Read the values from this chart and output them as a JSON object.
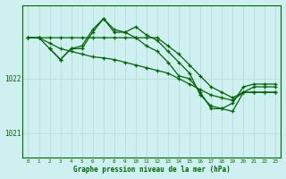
{
  "title": "Graphe pression niveau de la mer (hPa)",
  "bg_color": "#cff0f0",
  "grid_color_v": "#b8ddd8",
  "grid_color_h": "#b8ddd8",
  "line_color": "#006600",
  "xlim": [
    -0.5,
    23.5
  ],
  "ylim": [
    1020.55,
    1023.35
  ],
  "yticks": [
    1021,
    1022
  ],
  "xticks": [
    0,
    1,
    2,
    3,
    4,
    5,
    6,
    7,
    8,
    9,
    10,
    11,
    12,
    13,
    14,
    15,
    16,
    17,
    18,
    19,
    20,
    21,
    22,
    23
  ],
  "series": [
    {
      "x": [
        0,
        1,
        2,
        3,
        4,
        5,
        6,
        7,
        8,
        9,
        10,
        11,
        12,
        13,
        14,
        15,
        16,
        17,
        18,
        19,
        20,
        21,
        22,
        23
      ],
      "y": [
        1022.75,
        1022.75,
        1022.75,
        1022.75,
        1022.75,
        1022.75,
        1022.75,
        1022.75,
        1022.75,
        1022.75,
        1022.75,
        1022.75,
        1022.75,
        1022.6,
        1022.45,
        1022.25,
        1022.05,
        1021.85,
        1021.75,
        1021.65,
        1021.75,
        1021.75,
        1021.75,
        1021.75
      ]
    },
    {
      "x": [
        0,
        1,
        2,
        3,
        4,
        5,
        6,
        7,
        8,
        9,
        10,
        11,
        12,
        13,
        14,
        15,
        16,
        17,
        18,
        19,
        20,
        21,
        22,
        23
      ],
      "y": [
        1022.75,
        1022.75,
        1022.65,
        1022.55,
        1022.5,
        1022.45,
        1022.4,
        1022.38,
        1022.35,
        1022.3,
        1022.25,
        1022.2,
        1022.15,
        1022.1,
        1022.0,
        1021.9,
        1021.8,
        1021.7,
        1021.65,
        1021.6,
        1021.75,
        1021.75,
        1021.75,
        1021.75
      ]
    },
    {
      "x": [
        2,
        3,
        4,
        5,
        6,
        7,
        8,
        9,
        10,
        11,
        12,
        13,
        14,
        15,
        16,
        17,
        18,
        19,
        20,
        21,
        22,
        23
      ],
      "y": [
        1022.55,
        1022.35,
        1022.55,
        1022.55,
        1022.85,
        1023.1,
        1022.85,
        1022.85,
        1022.75,
        1022.6,
        1022.5,
        1022.3,
        1022.05,
        1022.0,
        1021.75,
        1021.45,
        1021.45,
        1021.4,
        1021.75,
        1021.85,
        1021.85,
        1021.85
      ]
    },
    {
      "x": [
        0,
        1,
        2,
        3,
        4,
        5,
        6,
        7,
        8,
        9,
        10,
        11,
        12,
        13,
        14,
        15,
        16,
        17,
        18,
        19,
        20,
        21,
        22,
        23
      ],
      "y": [
        1022.75,
        1022.75,
        1022.55,
        1022.35,
        1022.55,
        1022.6,
        1022.9,
        1023.1,
        1022.9,
        1022.85,
        1022.95,
        1022.8,
        1022.7,
        1022.5,
        1022.3,
        1022.1,
        1021.7,
        1021.5,
        1021.45,
        1021.55,
        1021.85,
        1021.9,
        1021.9,
        1021.9
      ]
    }
  ]
}
